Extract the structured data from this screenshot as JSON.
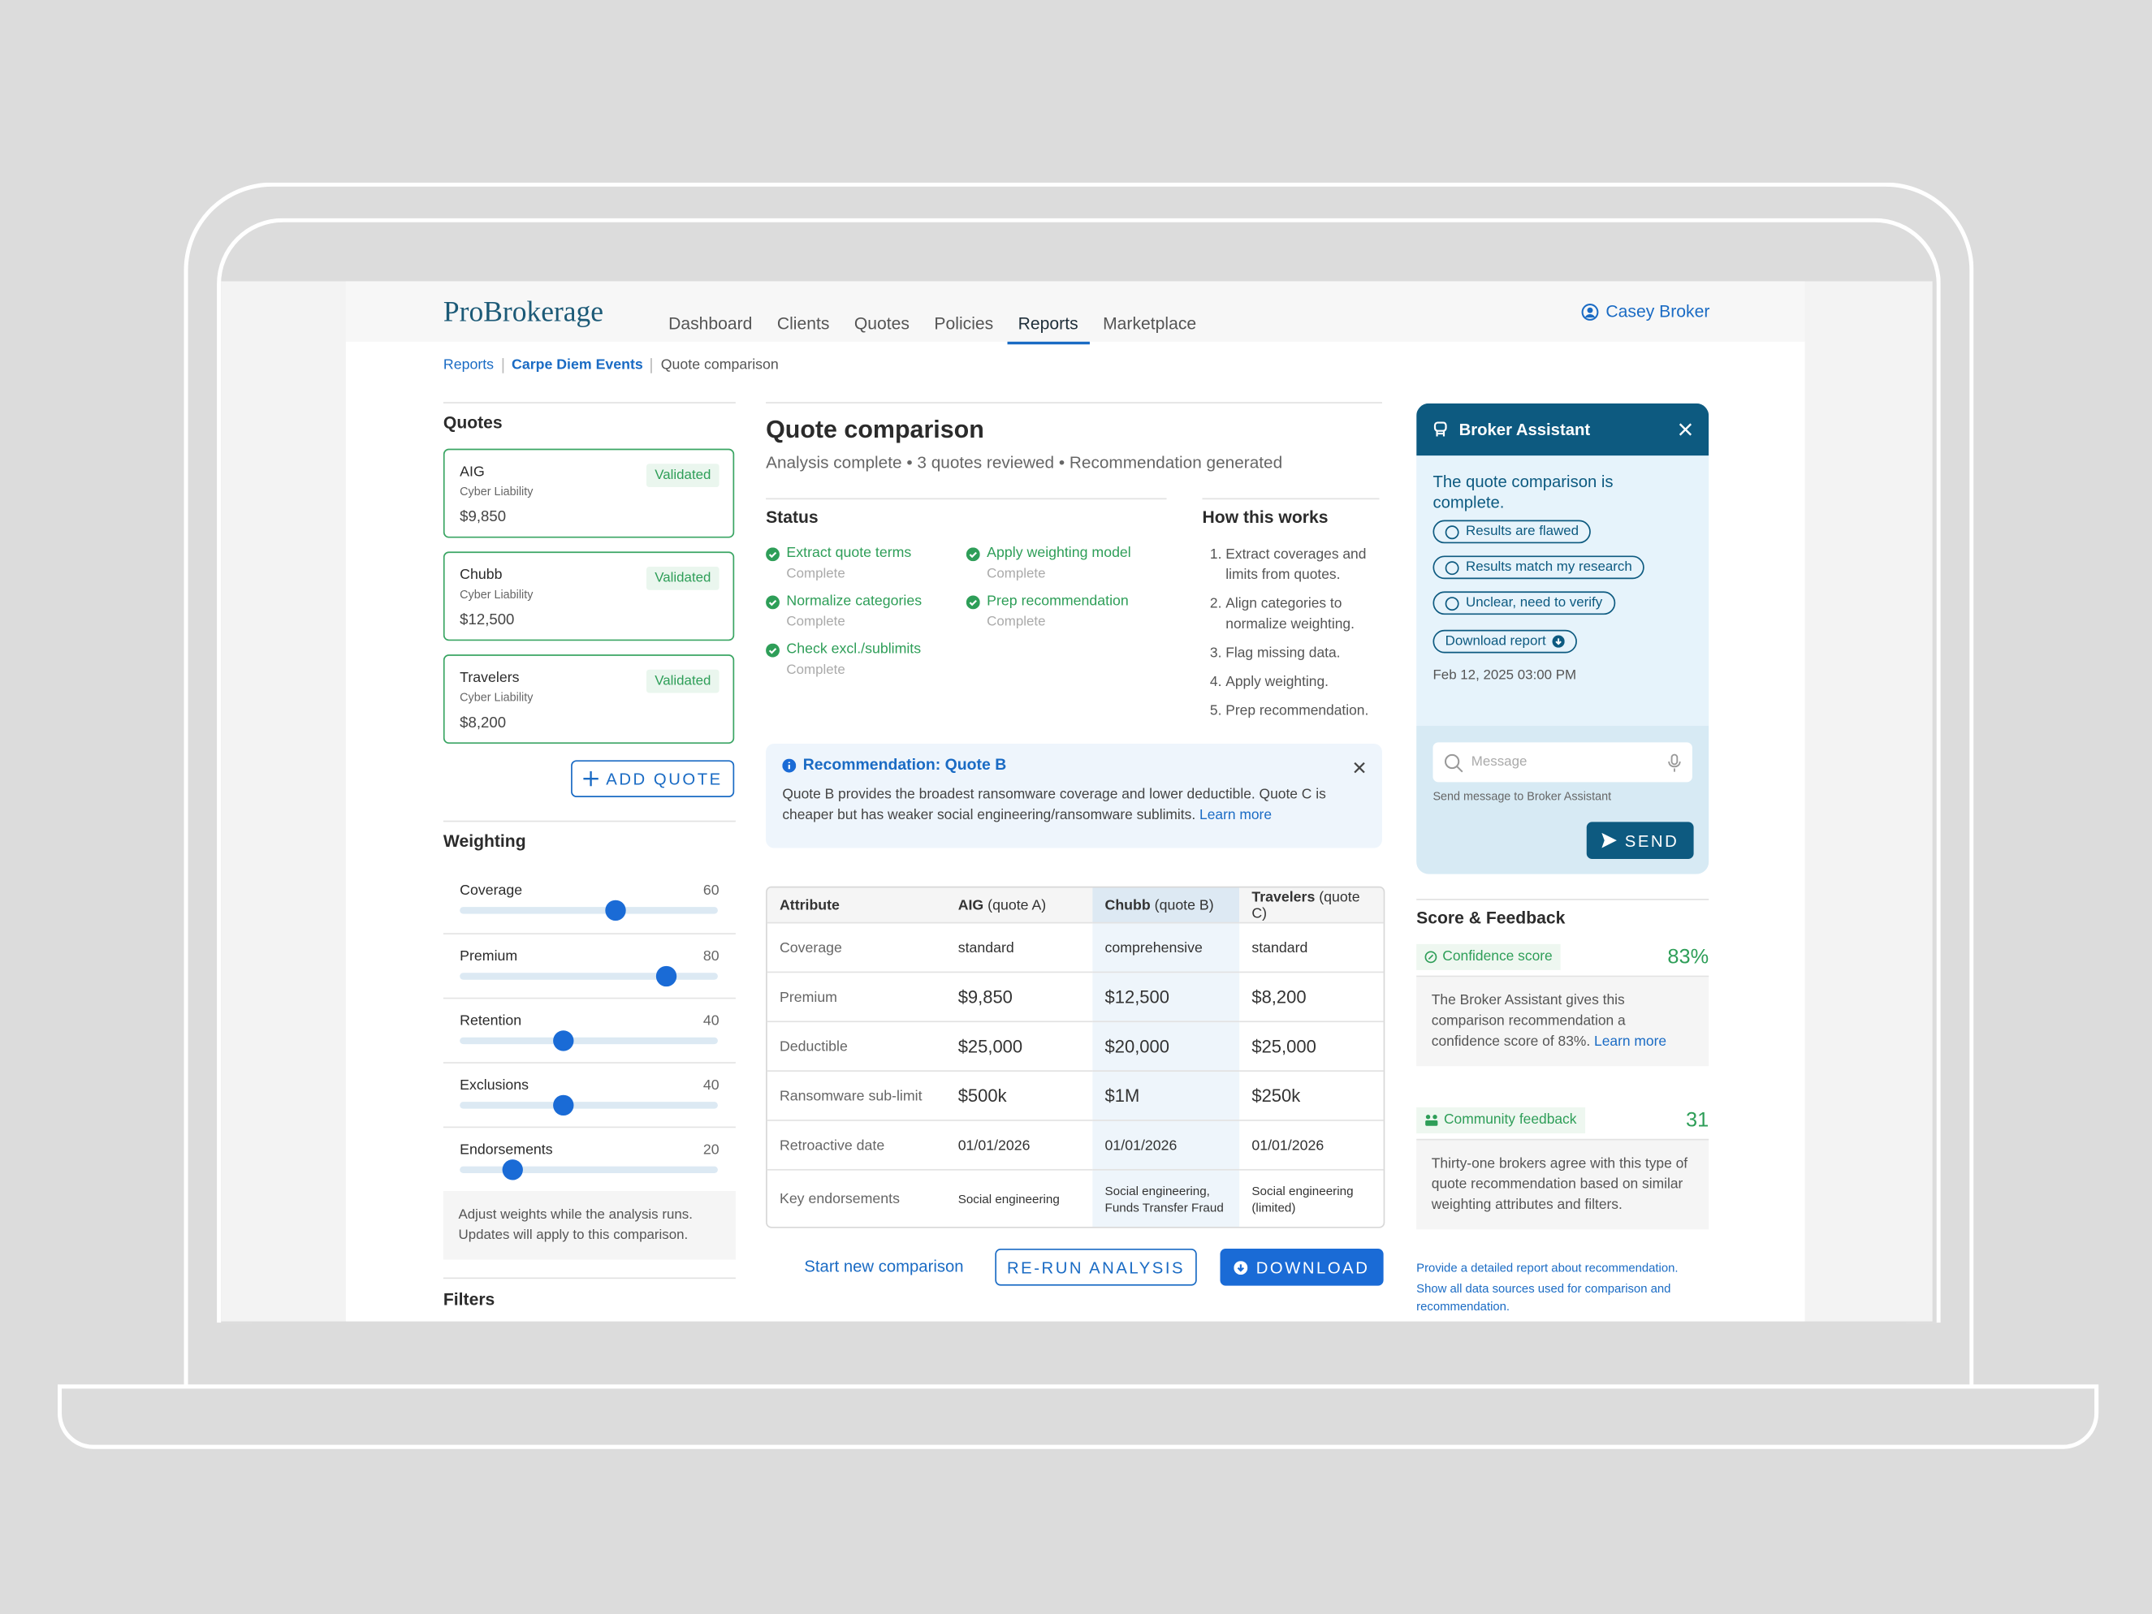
{
  "header": {
    "brand": "ProBrokerage",
    "nav": [
      "Dashboard",
      "Clients",
      "Quotes",
      "Policies",
      "Reports",
      "Marketplace"
    ],
    "active": 4,
    "user": "Casey Broker"
  },
  "breadcrumb": [
    "Reports",
    "Carpe Diem Events",
    "Quote comparison"
  ],
  "quotes": {
    "title": "Quotes",
    "items": [
      {
        "name": "AIG",
        "line": "Cyber Liability",
        "price": "$9,850",
        "status": "Validated"
      },
      {
        "name": "Chubb",
        "line": "Cyber Liability",
        "price": "$12,500",
        "status": "Validated"
      },
      {
        "name": "Travelers",
        "line": "Cyber Liability",
        "price": "$8,200",
        "status": "Validated"
      }
    ],
    "add": "ADD QUOTE"
  },
  "weighting": {
    "title": "Weighting",
    "items": [
      {
        "label": "Coverage",
        "value": 60
      },
      {
        "label": "Premium",
        "value": 80
      },
      {
        "label": "Retention",
        "value": 40
      },
      {
        "label": "Exclusions",
        "value": 40
      },
      {
        "label": "Endorsements",
        "value": 20
      }
    ],
    "note": "Adjust weights while the analysis runs. Updates will apply to this comparison."
  },
  "filters": {
    "title": "Filters"
  },
  "comparison": {
    "title": "Quote comparison",
    "subtitle": "Analysis complete • 3 quotes reviewed • Recommendation generated",
    "status": {
      "title": "Status",
      "steps": [
        {
          "label": "Extract quote terms",
          "state": "Complete"
        },
        {
          "label": "Normalize categories",
          "state": "Complete"
        },
        {
          "label": "Check excl./sublimits",
          "state": "Complete"
        },
        {
          "label": "Apply weighting model",
          "state": "Complete"
        },
        {
          "label": "Prep recommendation",
          "state": "Complete"
        }
      ]
    },
    "how": {
      "title": "How this works",
      "steps": [
        "Extract coverages and limits from quotes.",
        "Align categories to normalize weighting.",
        "Flag missing data.",
        "Apply weighting.",
        "Prep recommendation."
      ]
    },
    "recommendation": {
      "title": "Recommendation: Quote B",
      "text": "Quote B provides the broadest ransomware coverage and lower deductible. Quote C is cheaper but has weaker social engineering/ransomware sublimits.",
      "link": "Learn more"
    },
    "table": {
      "columns": [
        {
          "name": "Attribute"
        },
        {
          "name": "AIG",
          "note": "(quote A)"
        },
        {
          "name": "Chubb",
          "note": "(quote B)"
        },
        {
          "name": "Travelers",
          "note": "(quote C)"
        }
      ],
      "rows": [
        [
          "Coverage",
          "standard",
          "comprehensive",
          "standard"
        ],
        [
          "Premium",
          "$9,850",
          "$12,500",
          "$8,200"
        ],
        [
          "Deductible",
          "$25,000",
          "$20,000",
          "$25,000"
        ],
        [
          "Ransomware sub-limit",
          "$500k",
          "$1M",
          "$250k"
        ],
        [
          "Retroactive date",
          "01/01/2026",
          "01/01/2026",
          "01/01/2026"
        ],
        [
          "Key endorsements",
          "Social engineering",
          "Social engineering, Funds Transfer Fraud",
          "Social engineering (limited)"
        ]
      ]
    },
    "actions": {
      "new": "Start new comparison",
      "rerun": "RE-RUN ANALYSIS",
      "download": "DOWNLOAD"
    }
  },
  "assistant": {
    "title": "Broker Assistant",
    "message": "The quote comparison is complete.",
    "options": [
      "Results are flawed",
      "Results match my research",
      "Unclear, need to verify"
    ],
    "download": "Download report",
    "timestamp": "Feb 12, 2025  03:00 PM",
    "placeholder": "Message",
    "hint": "Send message to Broker Assistant",
    "send": "SEND"
  },
  "feedback": {
    "title": "Score & Feedback",
    "confidence": {
      "label": "Confidence score",
      "value": "83%",
      "text": "The Broker Assistant gives this comparison recommendation a confidence score of 83%.",
      "link": "Learn more"
    },
    "community": {
      "label": "Community feedback",
      "value": "31",
      "text": "Thirty-one brokers agree with this type of quote recommendation based on similar weighting attributes and filters."
    },
    "links": [
      "Provide a detailed report about recommendation.",
      "Show all data sources used for  comparison and recommendation."
    ]
  }
}
